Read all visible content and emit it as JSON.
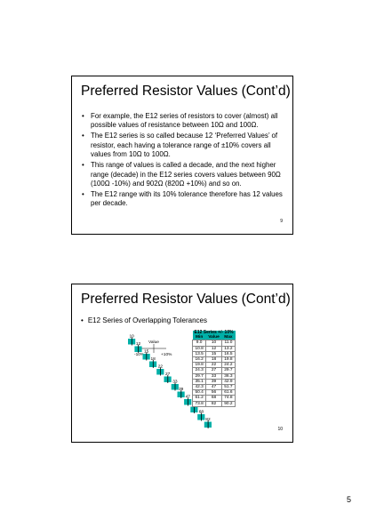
{
  "slide1": {
    "title": "Preferred Resistor Values (Cont’d)",
    "bullets": [
      "For example, the E12 series of resistors to cover (almost) all possible values of resistance between 10Ω and 100Ω.",
      "The E12 series is so called because 12 ‘Preferred Values’ of resistor, each having a tolerance range of ±10% covers all values from 10Ω to 100Ω.",
      "This range of values is called a decade, and the next higher range (decade) in the E12 series covers values between 90Ω (100Ω -10%) and 902Ω (820Ω +10%) and so on.",
      "The E12 range with its 10% tolerance therefore has 12 values per decade."
    ],
    "number": "9"
  },
  "slide2": {
    "title": "Preferred Resistor Values (Cont’d)",
    "bullet": "E12 Series of Overlapping Tolerances",
    "number": "10",
    "legend": {
      "value": "Value",
      "minus": "-10%",
      "plus": "+10%"
    },
    "chart_data": {
      "type": "table",
      "title": "E12 Series +/- 10%",
      "columns": [
        "Min",
        "Value",
        "Max"
      ],
      "rows": [
        [
          "9.0",
          "10",
          "11.0"
        ],
        [
          "10.8",
          "12",
          "13.2"
        ],
        [
          "13.5",
          "15",
          "16.5"
        ],
        [
          "16.2",
          "18",
          "19.8"
        ],
        [
          "19.8",
          "22",
          "24.2"
        ],
        [
          "24.3",
          "27",
          "29.7"
        ],
        [
          "29.7",
          "33",
          "36.3"
        ],
        [
          "35.1",
          "39",
          "42.9"
        ],
        [
          "42.3",
          "47",
          "51.7"
        ],
        [
          "50.4",
          "56",
          "61.6"
        ],
        [
          "61.2",
          "68",
          "74.8"
        ],
        [
          "73.8",
          "82",
          "90.2"
        ]
      ],
      "ranges": [
        {
          "label": "10",
          "min": 9.0,
          "value": 10,
          "max": 11.0
        },
        {
          "label": "12",
          "min": 10.8,
          "value": 12,
          "max": 13.2
        },
        {
          "label": "15",
          "min": 13.5,
          "value": 15,
          "max": 16.5
        },
        {
          "label": "18",
          "min": 16.2,
          "value": 18,
          "max": 19.8
        },
        {
          "label": "22",
          "min": 19.8,
          "value": 22,
          "max": 24.2
        },
        {
          "label": "27",
          "min": 24.3,
          "value": 27,
          "max": 29.7
        },
        {
          "label": "33",
          "min": 29.7,
          "value": 33,
          "max": 36.3
        },
        {
          "label": "39",
          "min": 35.1,
          "value": 39,
          "max": 42.9
        },
        {
          "label": "47",
          "min": 42.3,
          "value": 47,
          "max": 51.7
        },
        {
          "label": "56",
          "min": 50.4,
          "value": 56,
          "max": 61.6
        },
        {
          "label": "68",
          "min": 61.2,
          "value": 68,
          "max": 74.8
        },
        {
          "label": "82",
          "min": 73.8,
          "value": 82,
          "max": 90.2
        }
      ],
      "bar_color": "#00b0a8"
    }
  },
  "page_number": "5"
}
